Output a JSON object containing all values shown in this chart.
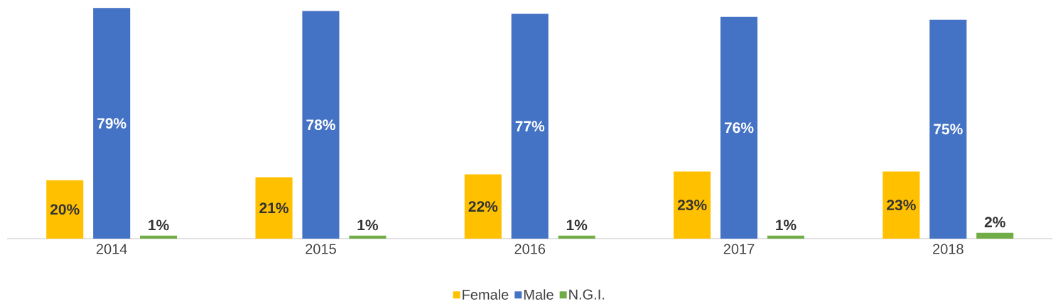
{
  "chart_data": {
    "type": "bar",
    "categories": [
      "2014",
      "2015",
      "2016",
      "2017",
      "2018"
    ],
    "series": [
      {
        "name": "Female",
        "color": "#ffc000",
        "values": [
          20,
          21,
          22,
          23,
          23
        ],
        "value_labels": [
          "20%",
          "21%",
          "22%",
          "23%",
          "23%"
        ]
      },
      {
        "name": "Male",
        "color": "#4472c4",
        "values": [
          79,
          78,
          77,
          76,
          75
        ],
        "value_labels": [
          "79%",
          "78%",
          "77%",
          "76%",
          "75%"
        ]
      },
      {
        "name": "N.G.I.",
        "color": "#70ad47",
        "values": [
          1,
          1,
          1,
          1,
          2
        ],
        "value_labels": [
          "1%",
          "1%",
          "1%",
          "1%",
          "2%"
        ]
      }
    ],
    "legend": "bottom",
    "grid": false
  }
}
